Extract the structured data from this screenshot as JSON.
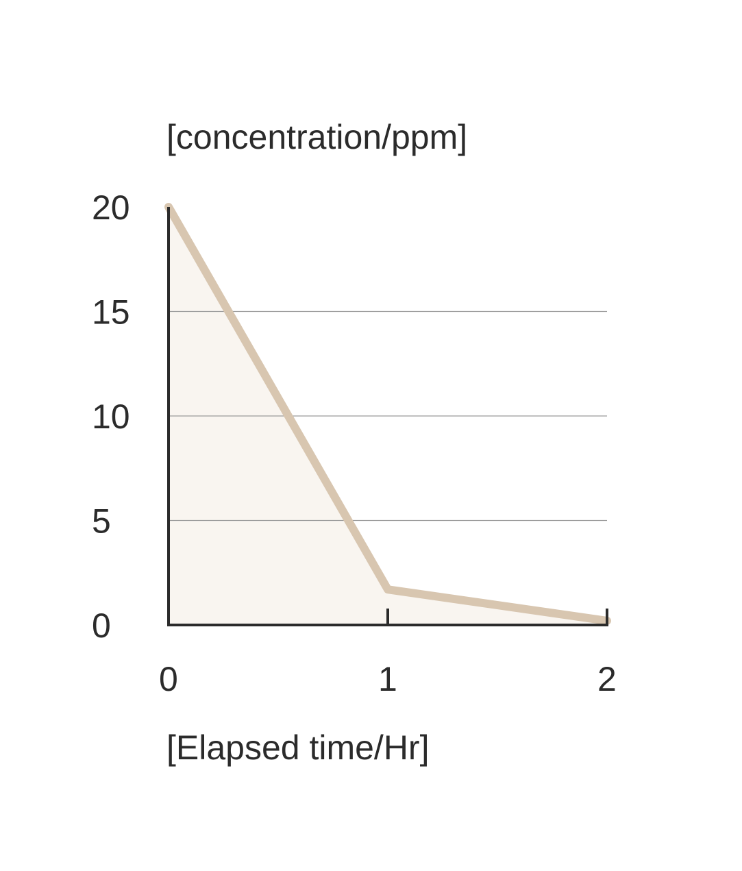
{
  "chart_data": {
    "type": "area",
    "ylabel": "[concentration/ppm]",
    "xlabel": "[Elapsed time/Hr]",
    "x_ticks": [
      "0",
      "1",
      "2"
    ],
    "y_ticks": [
      "0",
      "5",
      "10",
      "15",
      "20"
    ],
    "xlim": [
      0,
      2
    ],
    "ylim": [
      0,
      20
    ],
    "grid": "horizontal",
    "series": [
      {
        "x": [
          0,
          1,
          2
        ],
        "y": [
          20,
          1.7,
          0.2
        ],
        "line_color": "#d8c6b0",
        "fill_color": "#f9f5f0"
      }
    ]
  }
}
